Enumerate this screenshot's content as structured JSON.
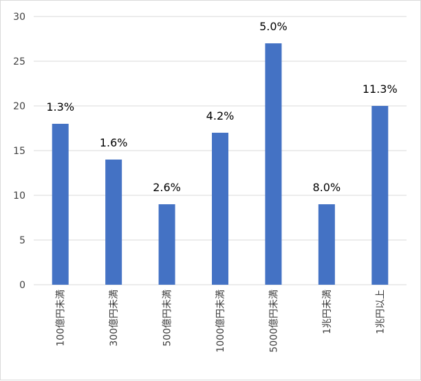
{
  "chart_data": {
    "type": "bar",
    "title": "",
    "xlabel": "",
    "ylabel": "",
    "categories": [
      "100億円未満",
      "300億円未満",
      "500億円未満",
      "1000億円未満",
      "5000億円未満",
      "1兆円未満",
      "1兆円以上"
    ],
    "values": [
      18,
      14,
      9,
      17,
      27,
      9,
      20
    ],
    "data_labels": [
      "1.3%",
      "1.6%",
      "2.6%",
      "4.2%",
      "5.0%",
      "8.0%",
      "11.3%"
    ],
    "y_ticks": [
      "0",
      "5",
      "10",
      "15",
      "20",
      "25",
      "30"
    ],
    "ylim": [
      0,
      30
    ],
    "grid": true,
    "legend": "none",
    "bar_color": "#4472C4",
    "grid_color": "#d9d9d9"
  }
}
